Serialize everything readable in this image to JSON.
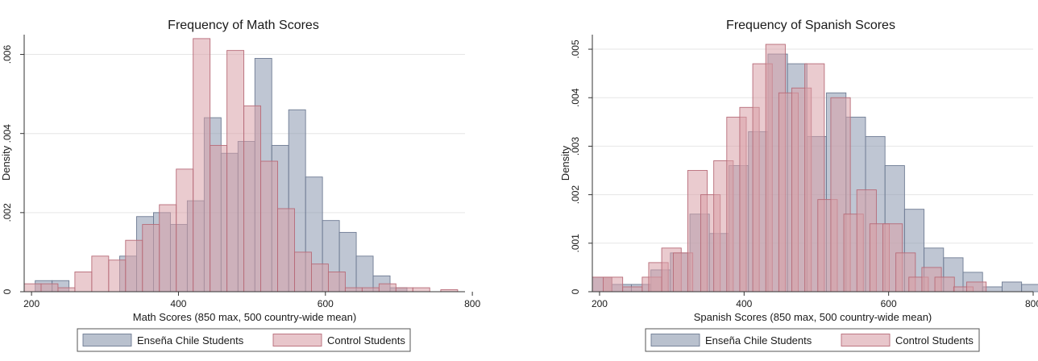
{
  "chart_data": [
    {
      "type": "histogram",
      "title": "Frequency of Math Scores",
      "xlabel": "Math Scores (850 max, 500 country-wide mean)",
      "ylabel": "Density",
      "xlim": [
        190,
        790
      ],
      "ylim": [
        0,
        0.0065
      ],
      "xticks": [
        200,
        400,
        600,
        800
      ],
      "yticks": [
        0,
        0.002,
        0.004,
        0.006
      ],
      "ytick_labels": [
        "0",
        ".002",
        ".004",
        ".006"
      ],
      "grid": true,
      "legend_position": "bottom",
      "bin_width": 23,
      "series": [
        {
          "name": "Enseña Chile Students",
          "color": "#8b98ae",
          "bins": [
            [
              205,
              0.00028
            ],
            [
              228,
              0.00028
            ],
            [
              251,
              0.0
            ],
            [
              274,
              0.0
            ],
            [
              297,
              0.0
            ],
            [
              320,
              0.0009
            ],
            [
              343,
              0.0019
            ],
            [
              366,
              0.002
            ],
            [
              389,
              0.0017
            ],
            [
              412,
              0.0023
            ],
            [
              435,
              0.0044
            ],
            [
              458,
              0.0035
            ],
            [
              481,
              0.0038
            ],
            [
              504,
              0.0059
            ],
            [
              527,
              0.0037
            ],
            [
              550,
              0.0046
            ],
            [
              573,
              0.0029
            ],
            [
              596,
              0.0018
            ],
            [
              619,
              0.0015
            ],
            [
              642,
              0.0009
            ],
            [
              665,
              0.0004
            ],
            [
              688,
              0.0001
            ]
          ]
        },
        {
          "name": "Control Students",
          "color": "#d9a0a8",
          "bins": [
            [
              190,
              0.0002
            ],
            [
              213,
              0.0002
            ],
            [
              236,
              0.0001
            ],
            [
              259,
              0.0005
            ],
            [
              282,
              0.0009
            ],
            [
              305,
              0.0008
            ],
            [
              328,
              0.0013
            ],
            [
              351,
              0.0017
            ],
            [
              374,
              0.0022
            ],
            [
              397,
              0.0031
            ],
            [
              420,
              0.0064
            ],
            [
              443,
              0.0037
            ],
            [
              466,
              0.0061
            ],
            [
              489,
              0.0047
            ],
            [
              512,
              0.0033
            ],
            [
              535,
              0.0021
            ],
            [
              558,
              0.001
            ],
            [
              581,
              0.0007
            ],
            [
              604,
              0.0005
            ],
            [
              627,
              0.0001
            ],
            [
              650,
              0.0001
            ],
            [
              673,
              0.0002
            ],
            [
              696,
              0.0001
            ],
            [
              719,
              0.0001
            ],
            [
              757,
              5e-05
            ]
          ]
        }
      ]
    },
    {
      "type": "histogram",
      "title": "Frequency of Spanish Scores",
      "xlabel": "Spanish Scores (850 max, 500 country-wide mean)",
      "ylabel": "Density",
      "xlim": [
        190,
        800
      ],
      "ylim": [
        0,
        0.0053
      ],
      "xticks": [
        200,
        400,
        600,
        800
      ],
      "yticks": [
        0,
        0.001,
        0.002,
        0.003,
        0.004,
        0.005
      ],
      "ytick_labels": [
        "0",
        ".001",
        ".002",
        ".003",
        ".004",
        ".005"
      ],
      "grid": true,
      "legend_position": "bottom",
      "bin_width": 27,
      "series": [
        {
          "name": "Enseña Chile Students",
          "color": "#8b98ae",
          "bins": [
            [
              190,
              0.0003
            ],
            [
              217,
              0.00015
            ],
            [
              244,
              0.00015
            ],
            [
              271,
              0.00045
            ],
            [
              298,
              0.0008
            ],
            [
              325,
              0.0016
            ],
            [
              352,
              0.0012
            ],
            [
              379,
              0.0026
            ],
            [
              406,
              0.0033
            ],
            [
              433,
              0.0049
            ],
            [
              460,
              0.0047
            ],
            [
              487,
              0.0032
            ],
            [
              514,
              0.0041
            ],
            [
              541,
              0.0036
            ],
            [
              568,
              0.0032
            ],
            [
              595,
              0.0026
            ],
            [
              622,
              0.0017
            ],
            [
              649,
              0.0009
            ],
            [
              676,
              0.0007
            ],
            [
              703,
              0.0004
            ],
            [
              730,
              0.0001
            ],
            [
              757,
              0.0002
            ],
            [
              784,
              0.00015
            ]
          ]
        },
        {
          "name": "Control Students",
          "color": "#d9a0a8",
          "bins": [
            [
              190,
              0.0003
            ],
            [
              205,
              0.0003
            ],
            [
              232,
              0.0001
            ],
            [
              259,
              0.0003
            ],
            [
              268,
              0.0006
            ],
            [
              286,
              0.0009
            ],
            [
              302,
              0.0008
            ],
            [
              322,
              0.0025
            ],
            [
              340,
              0.002
            ],
            [
              358,
              0.0027
            ],
            [
              376,
              0.0036
            ],
            [
              394,
              0.0038
            ],
            [
              412,
              0.0047
            ],
            [
              430,
              0.0051
            ],
            [
              448,
              0.0041
            ],
            [
              466,
              0.0042
            ],
            [
              484,
              0.0047
            ],
            [
              502,
              0.0019
            ],
            [
              520,
              0.004
            ],
            [
              538,
              0.0016
            ],
            [
              556,
              0.0021
            ],
            [
              574,
              0.0014
            ],
            [
              592,
              0.0014
            ],
            [
              610,
              0.0008
            ],
            [
              628,
              0.0003
            ],
            [
              646,
              0.0005
            ],
            [
              664,
              0.0003
            ],
            [
              690,
              0.0001
            ],
            [
              708,
              0.0002
            ]
          ]
        }
      ]
    }
  ]
}
